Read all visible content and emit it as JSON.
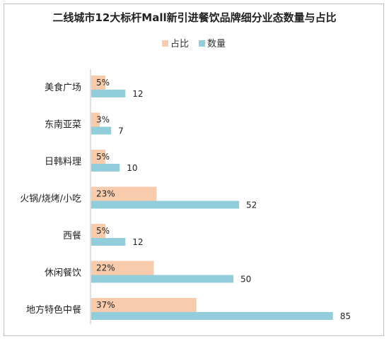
{
  "chart_data": {
    "type": "bar",
    "orientation": "horizontal",
    "title": "二线城市12大标杆Mall新引进餐饮品牌细分业态数量与占比",
    "categories": [
      "美食广场",
      "东南亚菜",
      "日韩料理",
      "火锅/烧烤/小吃",
      "西餐",
      "休闲餐饮",
      "地方特色中餐"
    ],
    "series": [
      {
        "name": "占比",
        "values": [
          5,
          3,
          5,
          23,
          5,
          22,
          37
        ],
        "labels": [
          "5%",
          "3%",
          "5%",
          "23%",
          "5%",
          "22%",
          "37%"
        ],
        "color": "#F8CBAD"
      },
      {
        "name": "数量",
        "values": [
          12,
          7,
          10,
          52,
          12,
          50,
          85
        ],
        "labels": [
          "12",
          "7",
          "10",
          "52",
          "12",
          "50",
          "85"
        ],
        "color": "#92CDDC"
      }
    ],
    "legend_position": "top",
    "grid": false
  }
}
